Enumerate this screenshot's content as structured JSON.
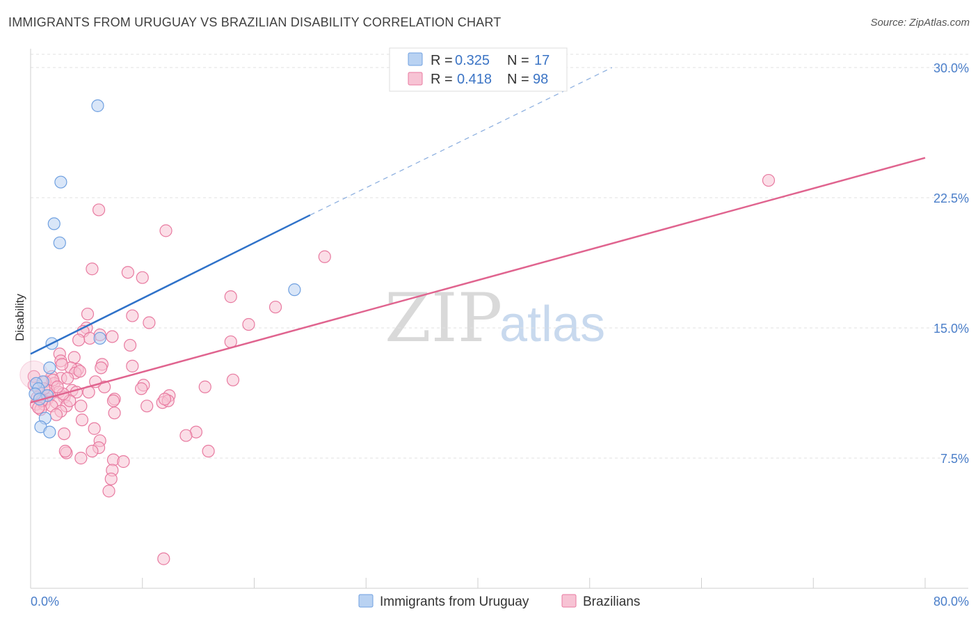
{
  "title": "IMMIGRANTS FROM URUGUAY VS BRAZILIAN DISABILITY CORRELATION CHART",
  "source": "Source: ZipAtlas.com",
  "watermark": {
    "zip": "ZIP",
    "atlas": "atlas"
  },
  "colors": {
    "blue": "#6fa0e0",
    "blue_fill": "#b9d2f2",
    "blue_line": "#2f72c9",
    "pink": "#e87aa0",
    "pink_fill": "#f7c3d4",
    "pink_line": "#e0648f",
    "axis_label": "#4a7ec9"
  },
  "legend": {
    "row1": {
      "r_label": "R =",
      "r_value": "0.325",
      "n_label": "N =",
      "n_value": "17"
    },
    "row2": {
      "r_label": "R =",
      "r_value": "0.418",
      "n_label": "N =",
      "n_value": "98"
    }
  },
  "chart_data": {
    "type": "scatter",
    "title": "IMMIGRANTS FROM URUGUAY VS BRAZILIAN DISABILITY CORRELATION CHART",
    "xlabel": "",
    "ylabel": "Disability",
    "xlim": [
      0,
      80
    ],
    "ylim": [
      0,
      31.5
    ],
    "x_tick_labels": {
      "min": "0.0%",
      "max": "80.0%"
    },
    "y_ticks": [
      7.5,
      15.0,
      22.5,
      30.0
    ],
    "y_tick_labels": [
      "7.5%",
      "15.0%",
      "22.5%",
      "30.0%"
    ],
    "grid": true,
    "legend_position": "top-center",
    "series": [
      {
        "name": "Immigrants from Uruguay",
        "color": "blue",
        "R": 0.325,
        "N": 17,
        "trend": {
          "x0": 0,
          "y0": 13.5,
          "x1": 25,
          "y1": 21.5,
          "dash_to_x": 52,
          "dash_to_y": 30.0
        },
        "points": [
          [
            6.0,
            27.8
          ],
          [
            2.7,
            23.4
          ],
          [
            2.1,
            21.0
          ],
          [
            2.6,
            19.9
          ],
          [
            23.6,
            17.2
          ],
          [
            6.2,
            14.4
          ],
          [
            1.9,
            14.1
          ],
          [
            1.7,
            12.7
          ],
          [
            1.1,
            11.9
          ],
          [
            0.5,
            11.8
          ],
          [
            0.7,
            11.5
          ],
          [
            0.4,
            11.2
          ],
          [
            1.5,
            11.1
          ],
          [
            0.8,
            10.9
          ],
          [
            1.3,
            9.8
          ],
          [
            0.9,
            9.3
          ],
          [
            1.7,
            9.0
          ]
        ]
      },
      {
        "name": "Brazilians",
        "color": "pink",
        "R": 0.418,
        "N": 98,
        "trend": {
          "x0": 0,
          "y0": 10.7,
          "x1": 80,
          "y1": 24.8
        },
        "points": [
          [
            66.0,
            23.5
          ],
          [
            6.1,
            21.8
          ],
          [
            12.1,
            20.6
          ],
          [
            26.3,
            19.1
          ],
          [
            5.5,
            18.4
          ],
          [
            8.7,
            18.2
          ],
          [
            10.0,
            17.9
          ],
          [
            17.9,
            16.8
          ],
          [
            21.9,
            16.2
          ],
          [
            5.1,
            15.8
          ],
          [
            9.1,
            15.7
          ],
          [
            10.6,
            15.3
          ],
          [
            19.5,
            15.2
          ],
          [
            5.0,
            15.0
          ],
          [
            4.7,
            14.8
          ],
          [
            6.2,
            14.6
          ],
          [
            7.3,
            14.5
          ],
          [
            5.3,
            14.4
          ],
          [
            4.3,
            14.3
          ],
          [
            17.9,
            14.2
          ],
          [
            8.9,
            14.0
          ],
          [
            2.6,
            13.5
          ],
          [
            3.9,
            13.3
          ],
          [
            2.7,
            13.1
          ],
          [
            6.4,
            12.9
          ],
          [
            6.3,
            12.7
          ],
          [
            9.1,
            12.8
          ],
          [
            4.2,
            12.6
          ],
          [
            3.6,
            12.7
          ],
          [
            4.0,
            12.4
          ],
          [
            1.9,
            12.2
          ],
          [
            2.7,
            12.1
          ],
          [
            18.1,
            12.0
          ],
          [
            2.1,
            11.8
          ],
          [
            1.3,
            11.9
          ],
          [
            6.6,
            11.6
          ],
          [
            10.1,
            11.7
          ],
          [
            15.6,
            11.6
          ],
          [
            9.9,
            11.5
          ],
          [
            3.7,
            11.4
          ],
          [
            2.5,
            11.3
          ],
          [
            1.0,
            11.2
          ],
          [
            4.1,
            11.3
          ],
          [
            5.2,
            11.3
          ],
          [
            1.7,
            11.1
          ],
          [
            12.4,
            11.1
          ],
          [
            3.0,
            11.0
          ],
          [
            0.8,
            11.0
          ],
          [
            1.5,
            10.9
          ],
          [
            7.5,
            10.9
          ],
          [
            11.8,
            10.7
          ],
          [
            12.3,
            10.8
          ],
          [
            2.3,
            10.7
          ],
          [
            0.5,
            10.6
          ],
          [
            1.2,
            10.6
          ],
          [
            1.9,
            10.5
          ],
          [
            3.2,
            10.5
          ],
          [
            4.5,
            10.5
          ],
          [
            10.4,
            10.5
          ],
          [
            0.9,
            10.3
          ],
          [
            2.7,
            10.2
          ],
          [
            7.5,
            10.1
          ],
          [
            2.3,
            10.0
          ],
          [
            4.6,
            9.7
          ],
          [
            14.8,
            9.0
          ],
          [
            5.7,
            9.2
          ],
          [
            3.0,
            8.9
          ],
          [
            13.9,
            8.8
          ],
          [
            6.2,
            8.5
          ],
          [
            6.1,
            8.1
          ],
          [
            5.5,
            7.9
          ],
          [
            3.2,
            7.8
          ],
          [
            15.9,
            7.9
          ],
          [
            3.1,
            7.9
          ],
          [
            4.5,
            7.5
          ],
          [
            7.4,
            7.4
          ],
          [
            8.3,
            7.3
          ],
          [
            7.3,
            6.8
          ],
          [
            7.2,
            6.3
          ],
          [
            7.0,
            5.6
          ],
          [
            11.9,
            1.7
          ],
          [
            0.3,
            11.7
          ],
          [
            1.6,
            11.4
          ],
          [
            0.6,
            11.0
          ],
          [
            4.4,
            12.5
          ],
          [
            2.0,
            12.0
          ],
          [
            3.5,
            10.8
          ],
          [
            1.0,
            10.8
          ],
          [
            2.9,
            11.2
          ],
          [
            0.3,
            12.2
          ],
          [
            7.4,
            10.8
          ],
          [
            12.0,
            10.9
          ],
          [
            1.2,
            11.5
          ],
          [
            2.4,
            11.6
          ],
          [
            3.3,
            12.1
          ],
          [
            0.7,
            10.4
          ],
          [
            5.8,
            11.9
          ],
          [
            2.8,
            12.9
          ]
        ]
      }
    ]
  }
}
